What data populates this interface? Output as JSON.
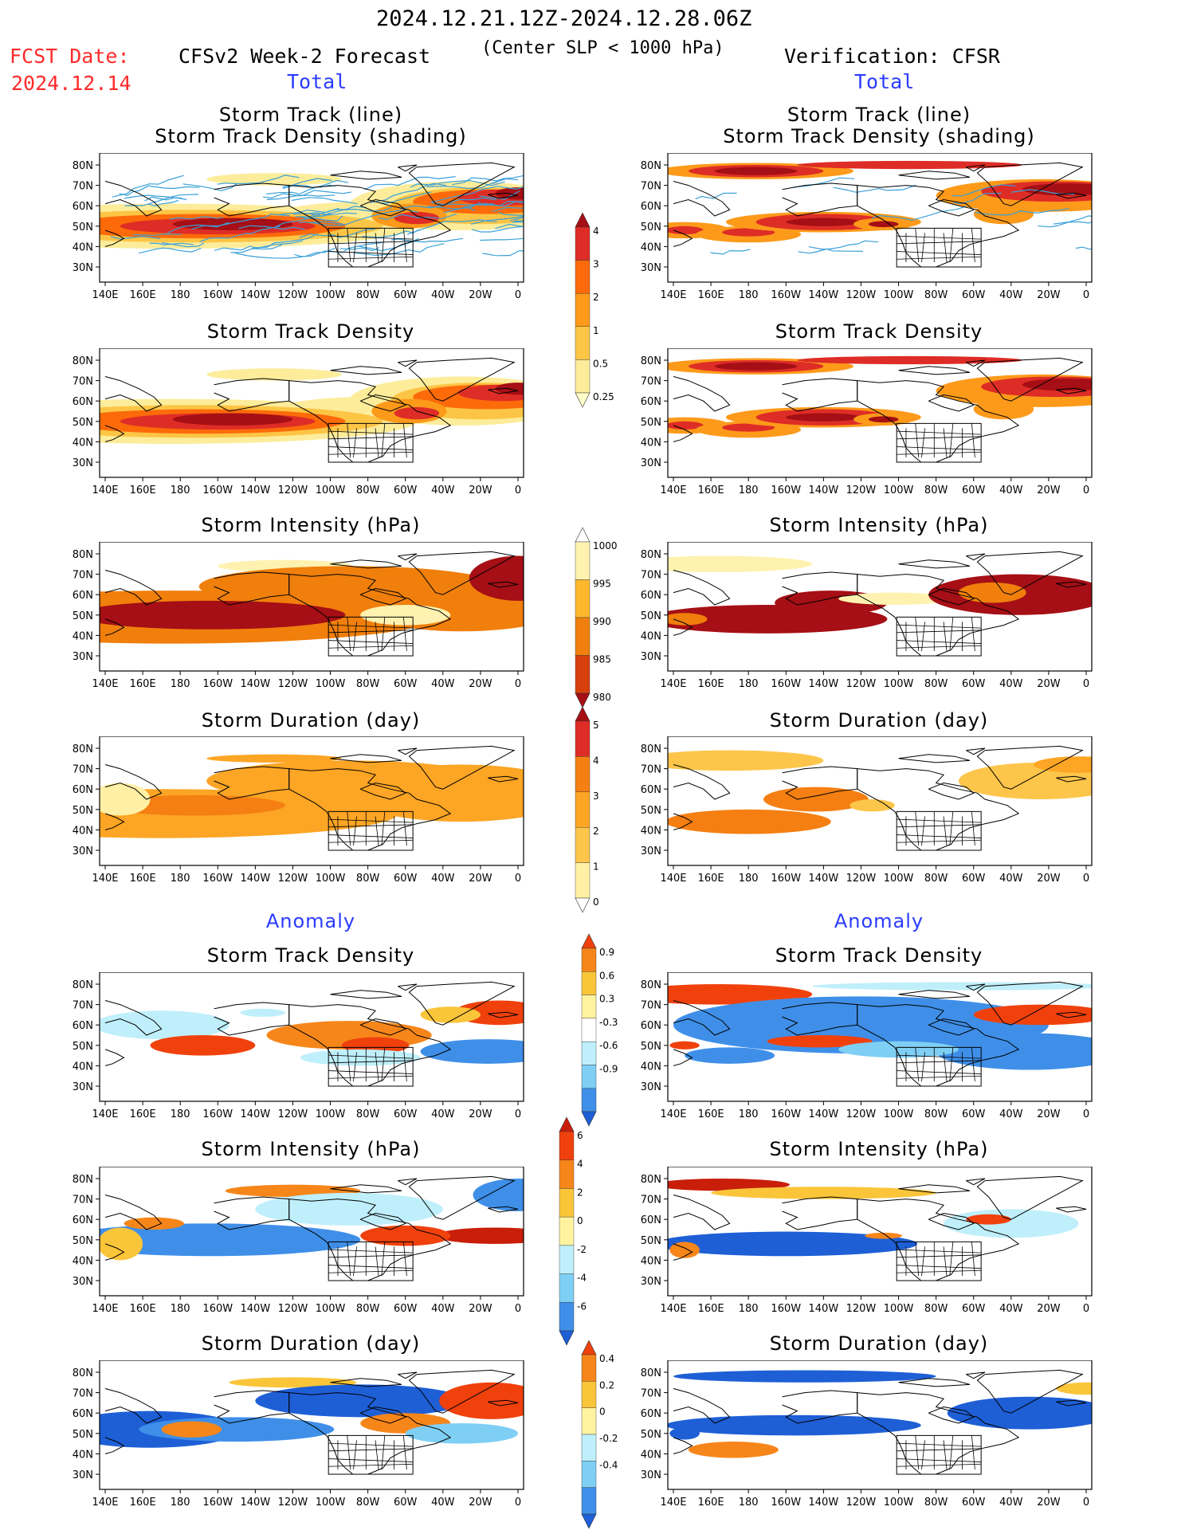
{
  "header": {
    "period": "2024.12.21.12Z-2024.12.28.06Z",
    "fcst_label": "FCST Date:",
    "fcst_date": "2024.12.14",
    "forecast_title": "CFSv2 Week-2 Forecast",
    "slp_condition": "(Center SLP < 1000 hPa)",
    "verification": "Verification: CFSR"
  },
  "sections": {
    "total": "Total",
    "anomaly": "Anomaly"
  },
  "panels": {
    "track_line": "Storm Track (line)",
    "track_density_shading": "Storm Track Density (shading)",
    "track_density": "Storm Track Density",
    "intensity": "Storm Intensity (hPa)",
    "duration": "Storm Duration (day)"
  },
  "axes": {
    "lon_labels": [
      "140E",
      "160E",
      "180",
      "160W",
      "140W",
      "120W",
      "100W",
      "80W",
      "60W",
      "40W",
      "20W",
      "0"
    ],
    "lat_labels": [
      "80N",
      "70N",
      "60N",
      "50N",
      "40N",
      "30N"
    ]
  },
  "colorbars": {
    "density": {
      "labels": [
        "4",
        "3",
        "2",
        "1",
        "0.5",
        "0.25"
      ],
      "colors": [
        "#a50f15",
        "#de2d26",
        "#fc6a0a",
        "#fd9a1a",
        "#fdc545",
        "#fdec9a",
        "#ffffc8"
      ]
    },
    "intensity": {
      "labels": [
        "1000",
        "995",
        "990",
        "985",
        "980"
      ],
      "colors": [
        "#ffffff",
        "#fff2b0",
        "#fdb82c",
        "#f07f0c",
        "#d6400c",
        "#a50f15"
      ]
    },
    "duration": {
      "labels": [
        "5",
        "4",
        "3",
        "2",
        "1",
        "0"
      ],
      "colors": [
        "#a50f15",
        "#de2d26",
        "#f57f12",
        "#fda524",
        "#fdc54a",
        "#fff0a5",
        "#ffffff"
      ]
    },
    "density_anom": {
      "labels": [
        "0.9",
        "0.6",
        "0.3",
        "-0.3",
        "-0.6",
        "-0.9"
      ],
      "colors": [
        "#f0410d",
        "#f6861a",
        "#fbc53a",
        "#fff3a0",
        "#ffffff",
        "#bfeffb",
        "#7fcff5",
        "#3f8fe8",
        "#1e5fd6"
      ]
    },
    "intensity_anom": {
      "labels": [
        "6",
        "4",
        "2",
        "0",
        "-2",
        "-4",
        "-6"
      ],
      "colors": [
        "#c81e0a",
        "#f0410d",
        "#f6861a",
        "#fbc53a",
        "#fff3a0",
        "#bfeffb",
        "#7fcff5",
        "#3f8fe8",
        "#1e5fd6"
      ]
    },
    "duration_anom": {
      "labels": [
        "0.4",
        "0.2",
        "0",
        "-0.2",
        "-0.4"
      ],
      "colors": [
        "#f0410d",
        "#f6861a",
        "#fbc53a",
        "#fff3a0",
        "#bfeffb",
        "#7fcff5",
        "#3f8fe8",
        "#1e5fd6"
      ]
    }
  },
  "colors": {
    "track_line": "#3aa0d8",
    "coast": "#000000"
  }
}
